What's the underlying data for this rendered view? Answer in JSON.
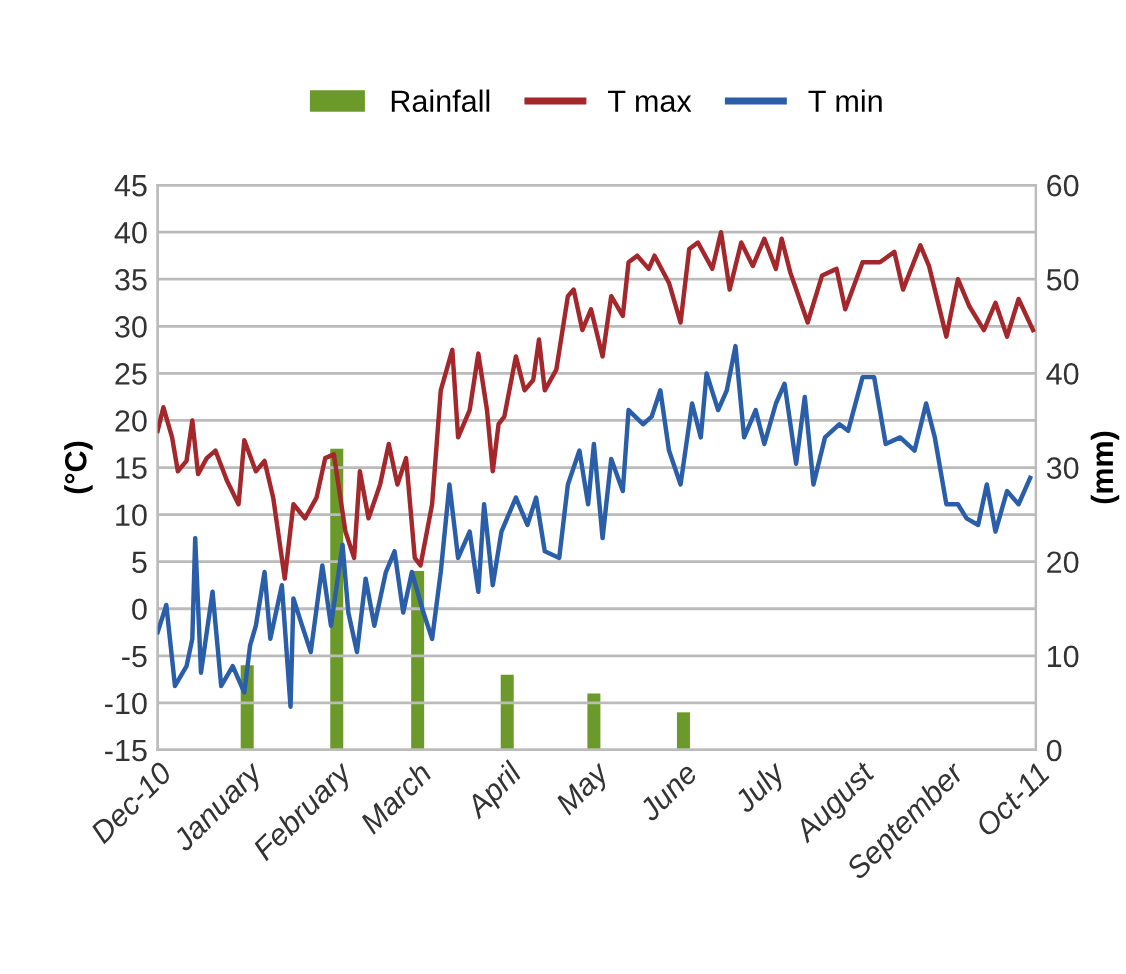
{
  "chart_data": {
    "type": "line",
    "ylabel": "(°C)",
    "y2label": "(mm)",
    "xlim": [
      "2010-12-01",
      "2011-10-01"
    ],
    "xticks": [
      {
        "value": "2010-12-01",
        "label": "Dec-10"
      },
      {
        "value": "2011-01-01",
        "label": "January"
      },
      {
        "value": "2011-02-01",
        "label": "February"
      },
      {
        "value": "2011-03-01",
        "label": "March"
      },
      {
        "value": "2011-04-01",
        "label": "April"
      },
      {
        "value": "2011-05-01",
        "label": "May"
      },
      {
        "value": "2011-06-01",
        "label": "June"
      },
      {
        "value": "2011-07-01",
        "label": "July"
      },
      {
        "value": "2011-08-01",
        "label": "August"
      },
      {
        "value": "2011-09-01",
        "label": "September"
      },
      {
        "value": "2011-10-01",
        "label": "Oct-11"
      }
    ],
    "ylim": [
      -15,
      45
    ],
    "yticks": [
      -15,
      -10,
      -5,
      0,
      5,
      10,
      15,
      20,
      25,
      30,
      35,
      40,
      45
    ],
    "y2lim": [
      0,
      60
    ],
    "y2ticks": [
      0,
      10,
      20,
      30,
      40,
      50,
      60
    ],
    "grid": "y",
    "legend": "top",
    "marker": "none",
    "line_style": "solid",
    "series": [
      {
        "name": "Rainfall",
        "type": "bar",
        "axis": "y2",
        "color": "#6b9a2a",
        "x": [
          "2011-01-01",
          "2011-02-01",
          "2011-03-01",
          "2011-04-01",
          "2011-05-01",
          "2011-06-01"
        ],
        "values": [
          9,
          32,
          19,
          8,
          6,
          4
        ]
      },
      {
        "name": "T max",
        "color": "#a3272b",
        "x": [
          "2010-12-01",
          "2010-12-03",
          "2010-12-06",
          "2010-12-08",
          "2010-12-11",
          "2010-12-13",
          "2010-12-15",
          "2010-12-18",
          "2010-12-21",
          "2010-12-25",
          "2010-12-29",
          "2010-12-31",
          "2011-01-04",
          "2011-01-07",
          "2011-01-10",
          "2011-01-14",
          "2011-01-17",
          "2011-01-21",
          "2011-01-25",
          "2011-01-28",
          "2011-01-31",
          "2011-02-04",
          "2011-02-07",
          "2011-02-09",
          "2011-02-12",
          "2011-02-16",
          "2011-02-19",
          "2011-02-22",
          "2011-02-25",
          "2011-02-28",
          "2011-03-02",
          "2011-03-06",
          "2011-03-09",
          "2011-03-13",
          "2011-03-15",
          "2011-03-19",
          "2011-03-22",
          "2011-03-25",
          "2011-03-27",
          "2011-03-29",
          "2011-03-31",
          "2011-04-04",
          "2011-04-07",
          "2011-04-10",
          "2011-04-12",
          "2011-04-14",
          "2011-04-18",
          "2011-04-22",
          "2011-04-24",
          "2011-04-27",
          "2011-04-30",
          "2011-05-04",
          "2011-05-07",
          "2011-05-11",
          "2011-05-13",
          "2011-05-16",
          "2011-05-20",
          "2011-05-22",
          "2011-05-27",
          "2011-05-31",
          "2011-06-03",
          "2011-06-06",
          "2011-06-11",
          "2011-06-14",
          "2011-06-17",
          "2011-06-21",
          "2011-06-25",
          "2011-06-29",
          "2011-07-03",
          "2011-07-05",
          "2011-07-08",
          "2011-07-14",
          "2011-07-19",
          "2011-07-24",
          "2011-07-27",
          "2011-08-02",
          "2011-08-08",
          "2011-08-13",
          "2011-08-16",
          "2011-08-22",
          "2011-08-25",
          "2011-08-31",
          "2011-09-04",
          "2011-09-08",
          "2011-09-13",
          "2011-09-17",
          "2011-09-21",
          "2011-09-25",
          "2011-09-30"
        ],
        "values": [
          18.9,
          21.4,
          18.2,
          14.6,
          15.7,
          20,
          14.3,
          16,
          16.8,
          13.6,
          11.1,
          17.9,
          14.6,
          15.7,
          11.8,
          3.2,
          11.1,
          9.6,
          11.8,
          16,
          16.4,
          8.2,
          5.4,
          14.6,
          9.6,
          13.2,
          17.5,
          13.2,
          16,
          5.4,
          4.6,
          11.1,
          23.2,
          27.5,
          18.2,
          21.1,
          27.1,
          21.1,
          14.6,
          19.6,
          20.4,
          26.8,
          23.2,
          24.3,
          28.6,
          23.2,
          25.4,
          33.2,
          33.9,
          29.6,
          31.8,
          26.8,
          33.2,
          31.1,
          36.8,
          37.5,
          36.1,
          37.5,
          34.6,
          30.4,
          38.2,
          38.9,
          36.1,
          40,
          33.9,
          38.9,
          36.4,
          39.3,
          36.1,
          39.3,
          35.7,
          30.4,
          35.4,
          36.1,
          31.8,
          36.8,
          36.8,
          37.9,
          33.9,
          38.6,
          36.4,
          28.9,
          35,
          32.1,
          29.6,
          32.5,
          28.9,
          32.9,
          29.6
        ]
      },
      {
        "name": "T min",
        "color": "#2a5ea8",
        "x": [
          "2010-12-01",
          "2010-12-04",
          "2010-12-07",
          "2010-12-11",
          "2010-12-13",
          "2010-12-14",
          "2010-12-16",
          "2010-12-20",
          "2010-12-23",
          "2010-12-27",
          "2010-12-31",
          "2011-01-02",
          "2011-01-04",
          "2011-01-07",
          "2011-01-09",
          "2011-01-13",
          "2011-01-16",
          "2011-01-17",
          "2011-01-20",
          "2011-01-23",
          "2011-01-27",
          "2011-01-30",
          "2011-02-03",
          "2011-02-05",
          "2011-02-08",
          "2011-02-11",
          "2011-02-14",
          "2011-02-18",
          "2011-02-21",
          "2011-02-24",
          "2011-02-27",
          "2011-03-03",
          "2011-03-06",
          "2011-03-09",
          "2011-03-12",
          "2011-03-15",
          "2011-03-19",
          "2011-03-22",
          "2011-03-24",
          "2011-03-27",
          "2011-03-30",
          "2011-04-04",
          "2011-04-08",
          "2011-04-11",
          "2011-04-14",
          "2011-04-19",
          "2011-04-22",
          "2011-04-26",
          "2011-04-29",
          "2011-05-01",
          "2011-05-04",
          "2011-05-07",
          "2011-05-11",
          "2011-05-13",
          "2011-05-18",
          "2011-05-21",
          "2011-05-24",
          "2011-05-27",
          "2011-05-31",
          "2011-06-04",
          "2011-06-07",
          "2011-06-09",
          "2011-06-13",
          "2011-06-16",
          "2011-06-19",
          "2011-06-22",
          "2011-06-26",
          "2011-06-29",
          "2011-07-03",
          "2011-07-06",
          "2011-07-10",
          "2011-07-13",
          "2011-07-16",
          "2011-07-20",
          "2011-07-25",
          "2011-07-28",
          "2011-08-02",
          "2011-08-06",
          "2011-08-10",
          "2011-08-15",
          "2011-08-20",
          "2011-08-24",
          "2011-08-27",
          "2011-08-31",
          "2011-09-04",
          "2011-09-07",
          "2011-09-11",
          "2011-09-14",
          "2011-09-17",
          "2011-09-21",
          "2011-09-25",
          "2011-09-29"
        ],
        "values": [
          -2.5,
          0.4,
          -8.2,
          -6.1,
          -3.2,
          7.5,
          -6.8,
          1.8,
          -8.2,
          -6.1,
          -8.9,
          -3.9,
          -1.8,
          3.9,
          -3.2,
          2.5,
          -10.4,
          1.1,
          -1.8,
          -4.6,
          4.6,
          -1.8,
          6.8,
          -0.4,
          -4.6,
          3.2,
          -1.8,
          3.9,
          6.1,
          -0.4,
          3.9,
          -0.4,
          -3.2,
          3.9,
          13.2,
          5.4,
          8.2,
          1.8,
          11.1,
          2.5,
          8.2,
          11.8,
          8.9,
          11.8,
          6.1,
          5.4,
          13.2,
          16.8,
          11.1,
          17.5,
          7.5,
          15.9,
          12.5,
          21.1,
          19.6,
          20.4,
          23.2,
          16.8,
          13.2,
          21.8,
          18.2,
          25,
          21.1,
          23.2,
          27.9,
          18.2,
          21.1,
          17.5,
          21.8,
          23.9,
          15.4,
          22.5,
          13.2,
          18.2,
          19.6,
          18.9,
          24.6,
          24.6,
          17.5,
          18.2,
          16.8,
          21.8,
          18.2,
          11.1,
          11.1,
          9.6,
          8.9,
          13.2,
          8.2,
          12.5,
          11.1,
          13.9
        ]
      }
    ]
  }
}
